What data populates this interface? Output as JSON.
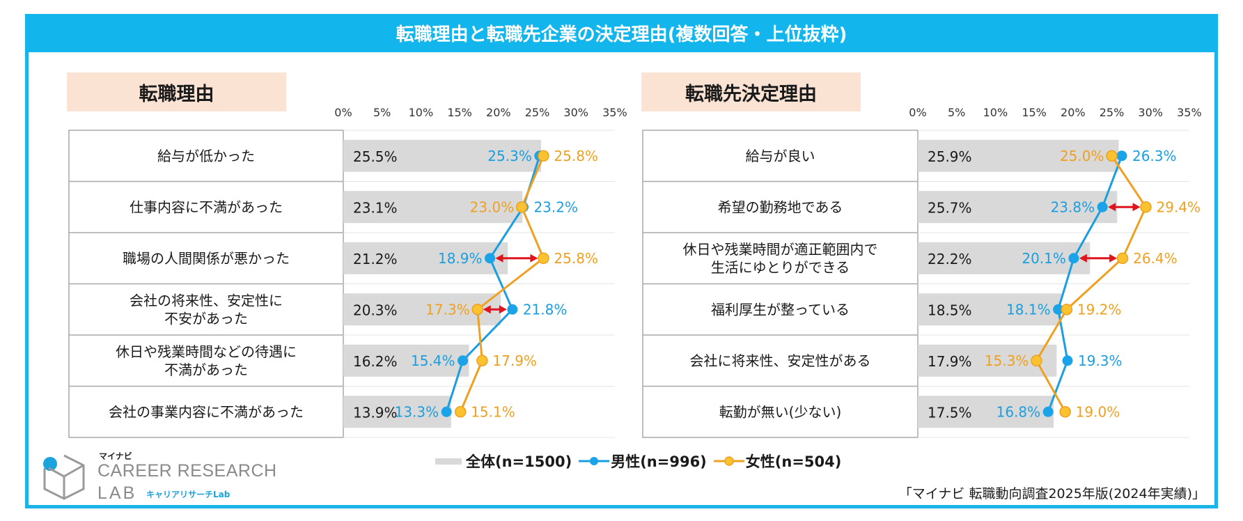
{
  "title": "転職理由と転職先企業の決定理由(複数回答・上位抜粋)",
  "colors": {
    "overall": "#d9d9d9",
    "male": "#1a9ee0",
    "female": "#f0a020",
    "female_marker": "#f9c22e",
    "gap_arrow": "#e0141e",
    "frame": "#12b5ec"
  },
  "legend": {
    "overall": "全体(n=1500)",
    "male": "男性(n=996)",
    "female": "女性(n=504)"
  },
  "source": "「マイナビ 転職動向調査2025年版(2024年実績)」",
  "logo": {
    "small": "マイナビ",
    "main": "CAREER RESEARCH",
    "lab": "LAB",
    "kana": "キャリアリサーチLab"
  },
  "chart_data": [
    {
      "type": "bar+line",
      "title": "転職理由",
      "x_ticks": [
        "0%",
        "5%",
        "10%",
        "15%",
        "20%",
        "25%",
        "30%",
        "35%"
      ],
      "xlim": [
        0,
        35
      ],
      "categories": [
        "給与が低かった",
        "仕事内容に不満があった",
        "職場の人間関係が悪かった",
        "会社の将来性、安定性に\n不安があった",
        "休日や残業時間などの待遇に\n不満があった",
        "会社の事業内容に不満があった"
      ],
      "series": [
        {
          "name": "全体(n=1500)",
          "values": [
            25.5,
            23.1,
            21.2,
            20.3,
            16.2,
            13.9
          ]
        },
        {
          "name": "男性(n=996)",
          "values": [
            25.3,
            23.2,
            18.9,
            21.8,
            15.4,
            13.3
          ]
        },
        {
          "name": "女性(n=504)",
          "values": [
            25.8,
            23.0,
            25.8,
            17.3,
            17.9,
            15.1
          ]
        }
      ],
      "label_sides": {
        "male": [
          "L",
          "R",
          "L",
          "R",
          "L",
          "L"
        ],
        "female": [
          "R",
          "L",
          "R",
          "L",
          "R",
          "R"
        ]
      },
      "gap_arrows": [
        2,
        3
      ]
    },
    {
      "type": "bar+line",
      "title": "転職先決定理由",
      "x_ticks": [
        "0%",
        "5%",
        "10%",
        "15%",
        "20%",
        "25%",
        "30%",
        "35%"
      ],
      "xlim": [
        0,
        35
      ],
      "categories": [
        "給与が良い",
        "希望の勤務地である",
        "休日や残業時間が適正範囲内で\n生活にゆとりができる",
        "福利厚生が整っている",
        "会社に将来性、安定性がある",
        "転勤が無い(少ない)"
      ],
      "series": [
        {
          "name": "全体(n=1500)",
          "values": [
            25.9,
            25.7,
            22.2,
            18.5,
            17.9,
            17.5
          ]
        },
        {
          "name": "男性(n=996)",
          "values": [
            26.3,
            23.8,
            20.1,
            18.1,
            19.3,
            16.8
          ]
        },
        {
          "name": "女性(n=504)",
          "values": [
            25.0,
            29.4,
            26.4,
            19.2,
            15.3,
            19.0
          ]
        }
      ],
      "label_sides": {
        "male": [
          "R",
          "L",
          "L",
          "L",
          "R",
          "L"
        ],
        "female": [
          "L",
          "R",
          "R",
          "R",
          "L",
          "R"
        ]
      },
      "gap_arrows": [
        1,
        2
      ]
    }
  ]
}
